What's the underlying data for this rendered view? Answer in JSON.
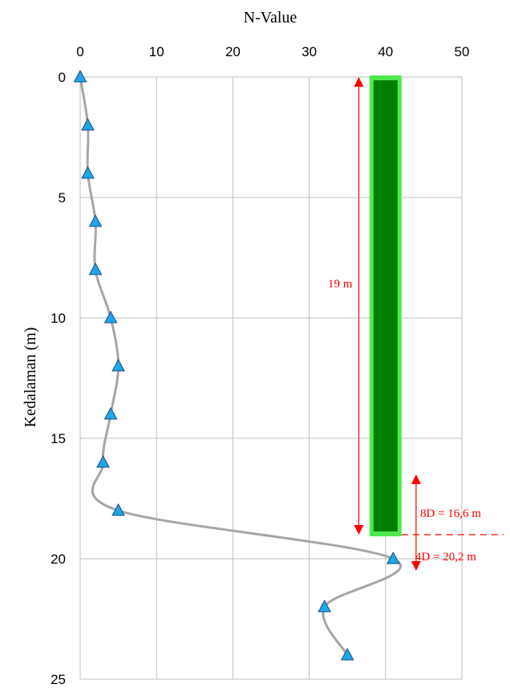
{
  "chart_data": {
    "type": "line",
    "title": "",
    "xlabel": "N-Value",
    "ylabel": "Kedalaman (m)",
    "xlim": [
      0,
      50
    ],
    "ylim": [
      0,
      25
    ],
    "y_inverted": true,
    "x_axis_position": "top",
    "grid": true,
    "x_ticks": [
      "0",
      "10",
      "20",
      "30",
      "40",
      "50"
    ],
    "y_ticks": [
      "0",
      "5",
      "10",
      "15",
      "20",
      "25"
    ],
    "series": [
      {
        "name": "",
        "x": [
          0,
          1,
          1,
          2,
          2,
          4,
          5,
          4,
          3,
          5,
          41,
          32,
          35
        ],
        "y": [
          0,
          2,
          4,
          6,
          8,
          10,
          12,
          14,
          16,
          18,
          20,
          22,
          24
        ],
        "line_color": "#a6a6a6",
        "marker": "triangle",
        "marker_color": "#1ea6e6"
      }
    ],
    "pile": {
      "x_center": 40,
      "top_depth": 0,
      "bottom_depth": 19,
      "fill_color": "#008000",
      "glow_color": "#4ee84e"
    },
    "annotations": {
      "pile_length": {
        "label": "19 m",
        "x": 36.5,
        "from": 0,
        "to": 19
      },
      "zone": {
        "x": 44,
        "from": 16.5,
        "to": 20.5,
        "ref_depth": 19
      },
      "above_label": "8D = 16,6 m",
      "below_label": "4D = 20,2 m",
      "color": "#ff0000"
    }
  }
}
